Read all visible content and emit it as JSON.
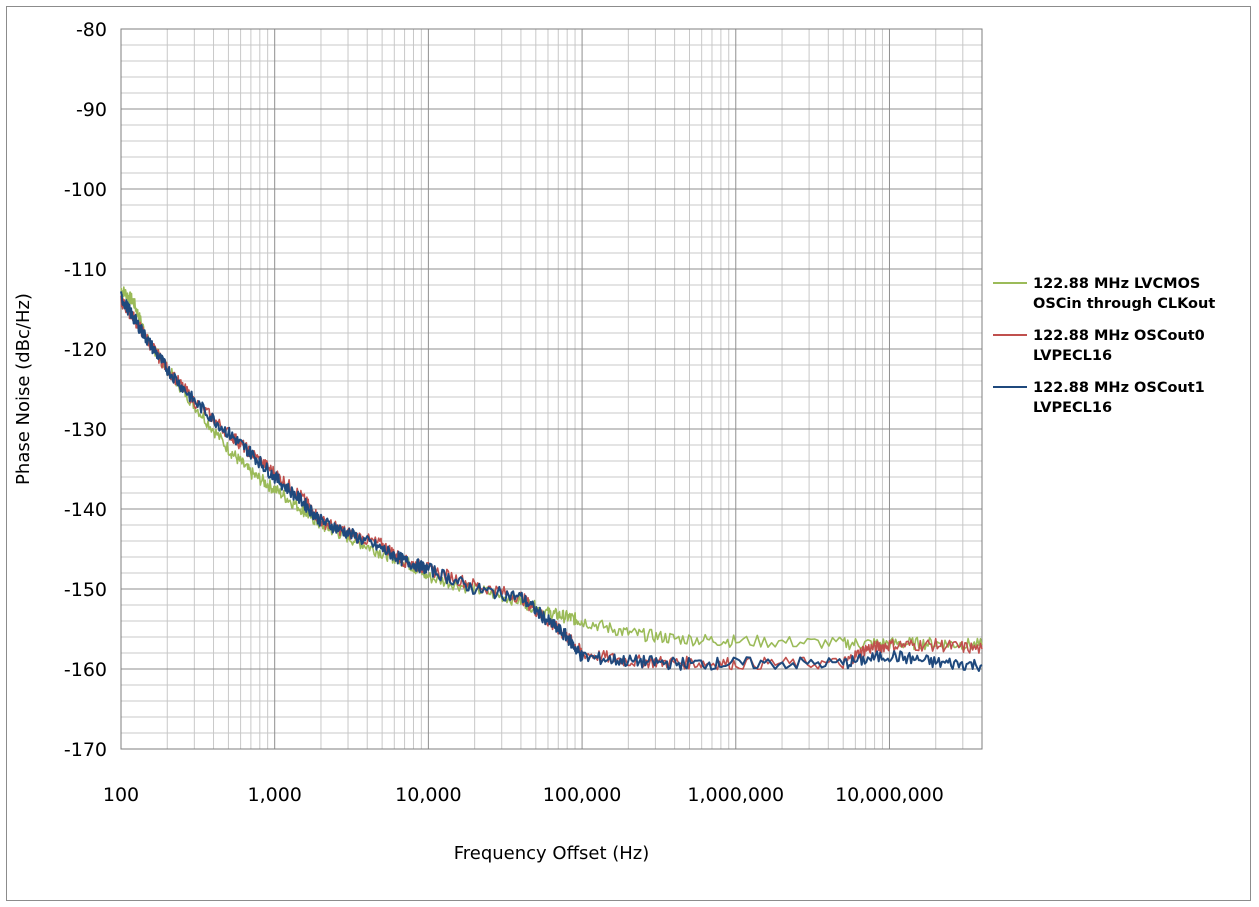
{
  "chart_data": {
    "type": "line",
    "title": "",
    "xlabel": "Frequency Offset (Hz)",
    "ylabel": "Phase Noise (dBc/Hz)",
    "x_scale": "log",
    "xlim": [
      100,
      40000000
    ],
    "ylim": [
      -170,
      -80
    ],
    "grid": true,
    "legend_position": "right",
    "x_ticks": [
      100,
      1000,
      10000,
      100000,
      1000000,
      10000000
    ],
    "x_tick_labels": [
      "100",
      "1,000",
      "10,000",
      "100,000",
      "1,000,000",
      "10,000,000"
    ],
    "y_ticks": [
      -170,
      -160,
      -150,
      -140,
      -130,
      -120,
      -110,
      -100,
      -90,
      -80
    ],
    "y_tick_labels": [
      "-170",
      "-160",
      "-150",
      "-140",
      "-130",
      "-120",
      "-110",
      "-100",
      "-90",
      "-80"
    ],
    "series": [
      {
        "name": "122.88 MHz LVCMOS OSCin through CLKout",
        "legend_lines": [
          "122.88 MHz LVCMOS",
          "OSCin through CLKout"
        ],
        "color": "#9bbb59",
        "x": [
          100,
          120,
          150,
          200,
          300,
          500,
          700,
          1000,
          1500,
          2000,
          3000,
          5000,
          7000,
          10000,
          20000,
          40000,
          60000,
          80000,
          100000,
          200000,
          400000,
          1000000,
          5000000,
          10000000,
          20000000,
          40000000
        ],
        "y": [
          -112.5,
          -114,
          -119,
          -122.5,
          -127,
          -132.5,
          -135.5,
          -137.5,
          -140,
          -142,
          -143.5,
          -145.5,
          -146.5,
          -148.5,
          -150,
          -151.5,
          -153,
          -153.5,
          -154,
          -155.5,
          -156.2,
          -156.5,
          -156.8,
          -156.8,
          -156.8,
          -157
        ]
      },
      {
        "name": "122.88 MHz OSCout0 LVPECL16",
        "legend_lines": [
          "122.88 MHz OSCout0",
          "LVPECL16"
        ],
        "color": "#c0504d",
        "x": [
          100,
          120,
          150,
          200,
          300,
          500,
          700,
          1000,
          1500,
          2000,
          3000,
          5000,
          7000,
          10000,
          20000,
          40000,
          60000,
          80000,
          100000,
          200000,
          400000,
          1000000,
          5000000,
          7000000,
          10000000,
          20000000,
          40000000
        ],
        "y": [
          -114,
          -116,
          -119,
          -122.5,
          -126.5,
          -130.5,
          -133,
          -135.5,
          -138.5,
          -141.5,
          -143,
          -144.5,
          -146.5,
          -147.5,
          -149.5,
          -151,
          -154,
          -156,
          -158,
          -159,
          -159.2,
          -159.3,
          -159.3,
          -157.5,
          -157,
          -157,
          -157.5
        ]
      },
      {
        "name": "122.88 MHz OSCout1 LVPECL16",
        "legend_lines": [
          "122.88 MHz OSCout1",
          "LVPECL16"
        ],
        "color": "#1f497d",
        "x": [
          100,
          120,
          150,
          200,
          300,
          500,
          700,
          1000,
          1500,
          2000,
          3000,
          5000,
          7000,
          10000,
          20000,
          40000,
          60000,
          80000,
          100000,
          200000,
          400000,
          1000000,
          5000000,
          10000000,
          20000000,
          40000000
        ],
        "y": [
          -113.5,
          -116,
          -119,
          -122.5,
          -126.5,
          -130.5,
          -133,
          -136,
          -139,
          -141.5,
          -143,
          -145,
          -146.5,
          -147.5,
          -150,
          -151,
          -154,
          -156,
          -158.5,
          -159,
          -159.3,
          -159.3,
          -159.3,
          -158.3,
          -159.2,
          -159.5
        ]
      }
    ]
  }
}
